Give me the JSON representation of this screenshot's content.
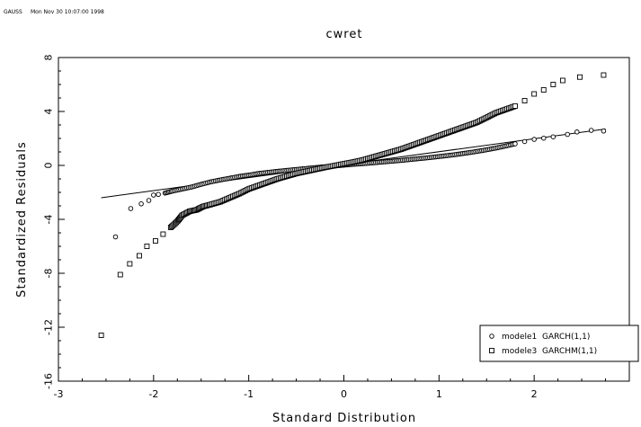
{
  "header": {
    "app": "GAUSS",
    "timestamp": "Mon Nov 30 10:07:00 1998"
  },
  "chart_data": {
    "type": "scatter",
    "title": "cwret",
    "xlabel": "Standard Distribution",
    "ylabel": "Standardized Residuals",
    "xlim": [
      -3,
      3
    ],
    "ylim": [
      -16,
      8
    ],
    "xticks": [
      "-3",
      "-2",
      "-1",
      "0",
      "1",
      "2"
    ],
    "yticks": [
      "-16",
      "-12",
      "-8",
      "-4",
      "0",
      "4",
      "8"
    ],
    "legend_position": "bottom-right",
    "reference_line": {
      "x": [
        -2.55,
        2.75
      ],
      "y": [
        -2.4,
        2.7
      ]
    },
    "series": [
      {
        "name": "modele1  GARCH(1,1)",
        "marker": "circle",
        "points": [
          [
            -2.4,
            -5.3
          ],
          [
            -2.24,
            -3.2
          ],
          [
            -2.13,
            -2.85
          ],
          [
            -2.05,
            -2.6
          ],
          [
            -2.0,
            -2.2
          ],
          [
            -1.95,
            -2.15
          ],
          [
            -1.88,
            -2.05
          ],
          [
            -1.8,
            -1.9
          ],
          [
            -1.7,
            -1.75
          ],
          [
            -1.6,
            -1.6
          ],
          [
            -1.5,
            -1.4
          ],
          [
            -1.4,
            -1.22
          ],
          [
            -1.3,
            -1.08
          ],
          [
            -1.2,
            -0.95
          ],
          [
            -1.1,
            -0.82
          ],
          [
            -1.0,
            -0.72
          ],
          [
            -0.9,
            -0.6
          ],
          [
            -0.8,
            -0.52
          ],
          [
            -0.7,
            -0.44
          ],
          [
            -0.6,
            -0.37
          ],
          [
            -0.5,
            -0.3
          ],
          [
            -0.4,
            -0.23
          ],
          [
            -0.3,
            -0.16
          ],
          [
            -0.2,
            -0.1
          ],
          [
            -0.1,
            -0.04
          ],
          [
            0.0,
            0.02
          ],
          [
            0.1,
            0.08
          ],
          [
            0.2,
            0.13
          ],
          [
            0.3,
            0.19
          ],
          [
            0.4,
            0.25
          ],
          [
            0.5,
            0.31
          ],
          [
            0.6,
            0.37
          ],
          [
            0.7,
            0.44
          ],
          [
            0.8,
            0.51
          ],
          [
            0.9,
            0.58
          ],
          [
            1.0,
            0.66
          ],
          [
            1.1,
            0.74
          ],
          [
            1.2,
            0.83
          ],
          [
            1.3,
            0.93
          ],
          [
            1.4,
            1.04
          ],
          [
            1.5,
            1.16
          ],
          [
            1.6,
            1.29
          ],
          [
            1.7,
            1.44
          ],
          [
            1.8,
            1.6
          ],
          [
            1.9,
            1.77
          ],
          [
            2.0,
            1.93
          ],
          [
            2.1,
            2.02
          ],
          [
            2.2,
            2.12
          ],
          [
            2.35,
            2.3
          ],
          [
            2.45,
            2.48
          ],
          [
            2.6,
            2.6
          ],
          [
            2.73,
            2.55
          ]
        ]
      },
      {
        "name": "modele3  GARCHM(1,1)",
        "marker": "square",
        "points": [
          [
            -2.55,
            -12.6
          ],
          [
            -2.35,
            -8.1
          ],
          [
            -2.25,
            -7.3
          ],
          [
            -2.15,
            -6.7
          ],
          [
            -2.07,
            -6.0
          ],
          [
            -1.98,
            -5.6
          ],
          [
            -1.9,
            -5.1
          ],
          [
            -1.82,
            -4.6
          ],
          [
            -1.75,
            -4.15
          ],
          [
            -1.7,
            -3.7
          ],
          [
            -1.62,
            -3.4
          ],
          [
            -1.55,
            -3.3
          ],
          [
            -1.48,
            -3.05
          ],
          [
            -1.4,
            -2.9
          ],
          [
            -1.3,
            -2.7
          ],
          [
            -1.2,
            -2.4
          ],
          [
            -1.1,
            -2.1
          ],
          [
            -1.0,
            -1.75
          ],
          [
            -0.9,
            -1.5
          ],
          [
            -0.8,
            -1.25
          ],
          [
            -0.7,
            -1.0
          ],
          [
            -0.6,
            -0.8
          ],
          [
            -0.5,
            -0.6
          ],
          [
            -0.4,
            -0.45
          ],
          [
            -0.3,
            -0.3
          ],
          [
            -0.2,
            -0.15
          ],
          [
            -0.1,
            -0.02
          ],
          [
            0.0,
            0.12
          ],
          [
            0.1,
            0.25
          ],
          [
            0.2,
            0.4
          ],
          [
            0.3,
            0.6
          ],
          [
            0.4,
            0.8
          ],
          [
            0.5,
            1.0
          ],
          [
            0.6,
            1.2
          ],
          [
            0.7,
            1.45
          ],
          [
            0.8,
            1.7
          ],
          [
            0.9,
            1.95
          ],
          [
            1.0,
            2.2
          ],
          [
            1.1,
            2.45
          ],
          [
            1.2,
            2.7
          ],
          [
            1.3,
            2.95
          ],
          [
            1.4,
            3.2
          ],
          [
            1.5,
            3.55
          ],
          [
            1.6,
            3.9
          ],
          [
            1.7,
            4.15
          ],
          [
            1.8,
            4.4
          ],
          [
            1.9,
            4.8
          ],
          [
            2.0,
            5.3
          ],
          [
            2.1,
            5.6
          ],
          [
            2.2,
            6.0
          ],
          [
            2.3,
            6.3
          ],
          [
            2.48,
            6.55
          ],
          [
            2.73,
            6.7
          ]
        ]
      }
    ]
  }
}
